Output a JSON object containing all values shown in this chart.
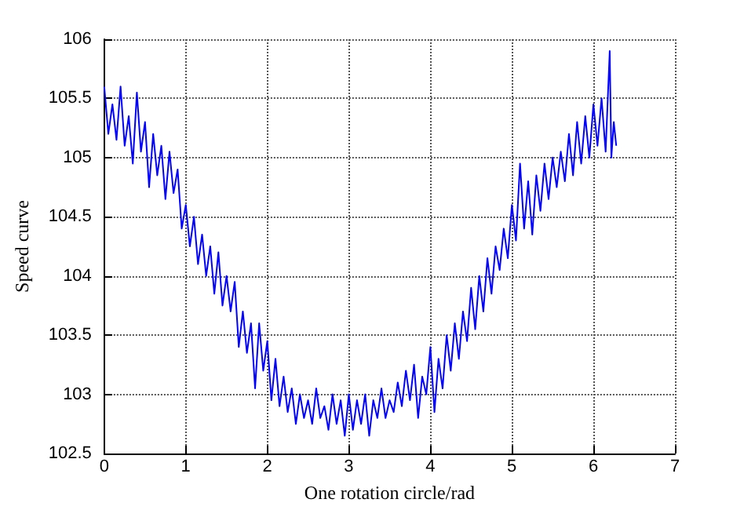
{
  "chart_data": {
    "type": "line",
    "xlabel": "One rotation circle/rad",
    "ylabel": "Speed curve",
    "x": [
      0,
      0.05,
      0.1,
      0.15,
      0.2,
      0.25,
      0.3,
      0.35,
      0.4,
      0.45,
      0.5,
      0.55,
      0.6,
      0.65,
      0.7,
      0.75,
      0.8,
      0.85,
      0.9,
      0.95,
      1,
      1.05,
      1.1,
      1.15,
      1.2,
      1.25,
      1.3,
      1.35,
      1.4,
      1.45,
      1.5,
      1.55,
      1.6,
      1.65,
      1.7,
      1.75,
      1.8,
      1.85,
      1.9,
      1.95,
      2,
      2.05,
      2.1,
      2.15,
      2.2,
      2.25,
      2.3,
      2.35,
      2.4,
      2.45,
      2.5,
      2.55,
      2.6,
      2.65,
      2.7,
      2.75,
      2.8,
      2.85,
      2.9,
      2.95,
      3,
      3.05,
      3.1,
      3.15,
      3.2,
      3.25,
      3.3,
      3.35,
      3.4,
      3.45,
      3.5,
      3.55,
      3.6,
      3.65,
      3.7,
      3.75,
      3.8,
      3.85,
      3.9,
      3.95,
      4,
      4.05,
      4.1,
      4.15,
      4.2,
      4.25,
      4.3,
      4.35,
      4.4,
      4.45,
      4.5,
      4.55,
      4.6,
      4.65,
      4.7,
      4.75,
      4.8,
      4.85,
      4.9,
      4.95,
      5,
      5.05,
      5.1,
      5.15,
      5.2,
      5.25,
      5.3,
      5.35,
      5.4,
      5.45,
      5.5,
      5.55,
      5.6,
      5.65,
      5.7,
      5.75,
      5.8,
      5.85,
      5.9,
      5.95,
      6,
      6.05,
      6.1,
      6.15,
      6.2,
      6.22,
      6.25,
      6.28
    ],
    "values": [
      105.6,
      105.2,
      105.45,
      105.15,
      105.6,
      105.1,
      105.35,
      104.95,
      105.55,
      105.05,
      105.3,
      104.75,
      105.2,
      104.85,
      105.1,
      104.65,
      105.05,
      104.7,
      104.9,
      104.4,
      104.6,
      104.25,
      104.5,
      104.1,
      104.35,
      104.0,
      104.25,
      103.85,
      104.2,
      103.75,
      104.0,
      103.7,
      103.95,
      103.4,
      103.7,
      103.35,
      103.6,
      103.05,
      103.6,
      103.2,
      103.45,
      102.95,
      103.3,
      102.9,
      103.15,
      102.85,
      103.05,
      102.75,
      103.0,
      102.8,
      102.95,
      102.75,
      103.05,
      102.8,
      102.9,
      102.7,
      103.0,
      102.75,
      102.95,
      102.65,
      103.0,
      102.7,
      102.95,
      102.75,
      103.0,
      102.65,
      102.95,
      102.8,
      103.05,
      102.8,
      102.95,
      102.85,
      103.1,
      102.9,
      103.2,
      102.95,
      103.25,
      102.8,
      103.15,
      103.0,
      103.4,
      102.85,
      103.3,
      103.05,
      103.5,
      103.2,
      103.6,
      103.3,
      103.7,
      103.45,
      103.9,
      103.55,
      104.0,
      103.7,
      104.15,
      103.85,
      104.25,
      104.05,
      104.4,
      104.15,
      104.6,
      104.3,
      104.95,
      104.4,
      104.8,
      104.35,
      104.85,
      104.55,
      104.95,
      104.65,
      105.0,
      104.75,
      105.05,
      104.8,
      105.2,
      104.85,
      105.3,
      104.95,
      105.35,
      105.0,
      105.45,
      105.1,
      105.5,
      105.05,
      105.9,
      105.0,
      105.3,
      105.1
    ],
    "color": "#0000ff",
    "xlim": [
      0,
      7
    ],
    "xticks": [
      0,
      1,
      2,
      3,
      4,
      5,
      6,
      7
    ],
    "ylim": [
      102.5,
      106
    ],
    "yticks": [
      102.5,
      103,
      103.5,
      104,
      104.5,
      105,
      105.5,
      106
    ],
    "grid": true,
    "marker": "none",
    "line_style": "solid"
  }
}
